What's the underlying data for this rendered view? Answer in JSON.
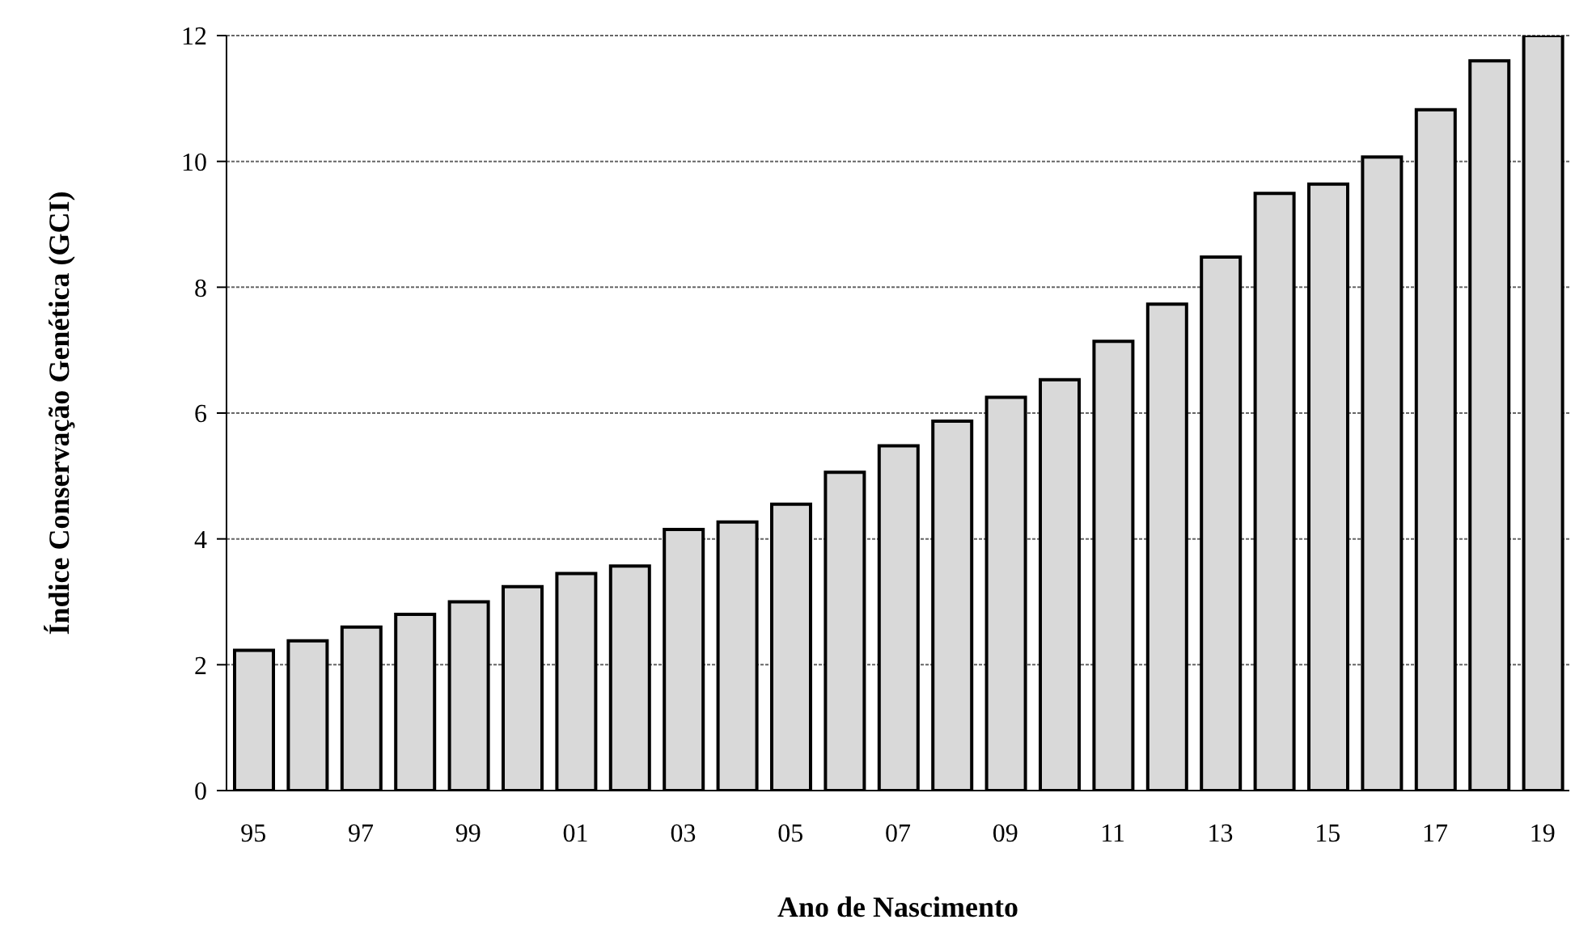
{
  "chart_data": {
    "type": "bar",
    "xlabel": "Ano de Nascimento",
    "ylabel": "Índice Conservação Genética (GCI)",
    "categories": [
      "95",
      null,
      "97",
      null,
      "99",
      null,
      "01",
      null,
      "03",
      null,
      "05",
      null,
      "07",
      null,
      "09",
      null,
      "11",
      null,
      "13",
      null,
      "15",
      null,
      "17",
      null,
      "19"
    ],
    "values": [
      2.23,
      2.38,
      2.6,
      2.8,
      3.0,
      3.24,
      3.45,
      3.57,
      4.15,
      4.27,
      4.55,
      5.06,
      5.48,
      5.87,
      6.25,
      6.53,
      7.14,
      7.73,
      8.48,
      9.49,
      9.64,
      10.07,
      10.82,
      11.6,
      12
    ],
    "color": "#d9d9d9",
    "ylim": [
      0,
      12
    ],
    "yticks": [
      0,
      2,
      4,
      6,
      8,
      10,
      12
    ],
    "grid": "y"
  }
}
